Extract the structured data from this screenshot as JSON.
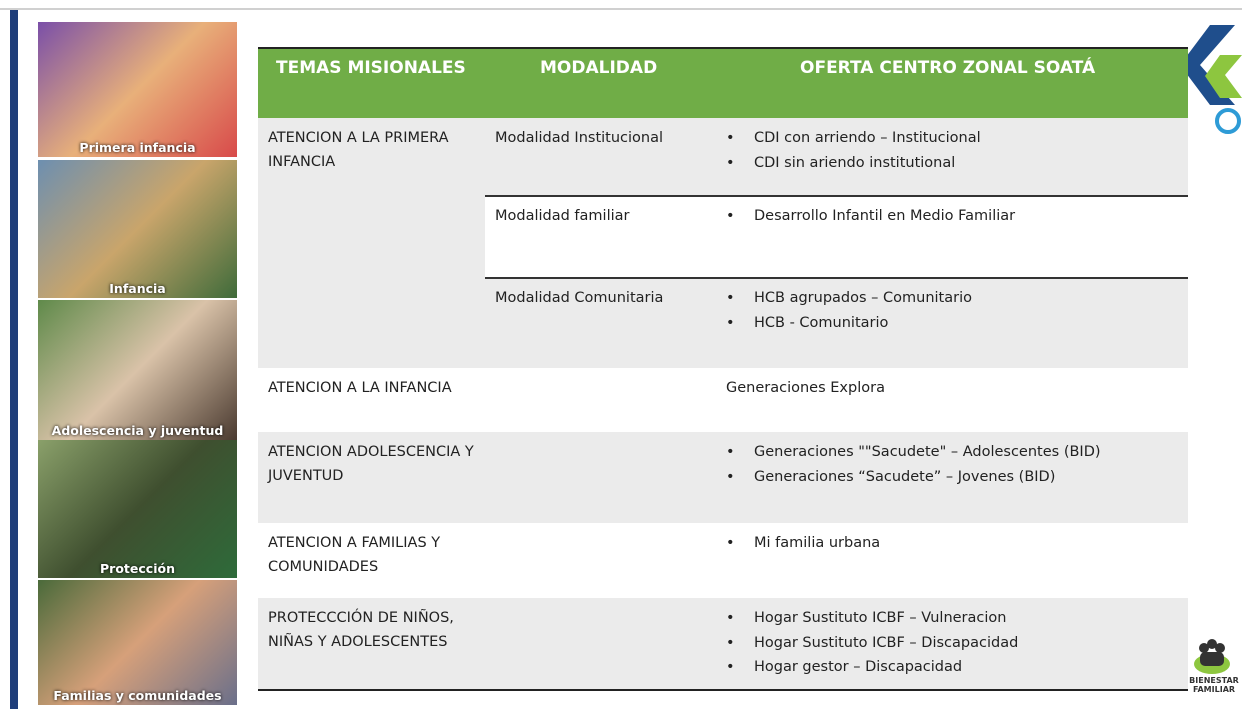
{
  "photos": [
    {
      "caption": "Primera infancia"
    },
    {
      "caption": "Infancia"
    },
    {
      "caption": "Adolescencia y juventud"
    },
    {
      "caption": "Protección"
    },
    {
      "caption": "Familias y comunidades"
    }
  ],
  "table": {
    "header": [
      "TEMAS MISIONALES",
      "MODALIDAD",
      "OFERTA CENTRO ZONAL SOATÁ"
    ],
    "rows": [
      {
        "tema": "ATENCION A LA PRIMERA INFANCIA",
        "items": [
          {
            "modalidad": "Modalidad Institucional",
            "oferta": [
              "CDI con arriendo – Institucional",
              "CDI sin ariendo institutional"
            ]
          },
          {
            "modalidad": "Modalidad familiar",
            "oferta": [
              "Desarrollo Infantil en Medio Familiar"
            ]
          },
          {
            "modalidad": "Modalidad Comunitaria",
            "oferta": [
              "HCB agrupados – Comunitario",
              "HCB - Comunitario"
            ]
          }
        ]
      },
      {
        "tema": "ATENCION A LA INFANCIA",
        "items": [
          {
            "oferta": "Generaciones Explora"
          }
        ]
      },
      {
        "tema": "ATENCION ADOLESCENCIA Y JUVENTUD",
        "items": [
          {
            "oferta": [
              "Generaciones \"\"Sacudete\" – Adolescentes (BID)",
              "Generaciones “Sacudete” – Jovenes (BID)"
            ]
          }
        ]
      },
      {
        "tema": "ATENCION A FAMILIAS Y COMUNIDADES",
        "items": [
          {
            "oferta": [
              "Mi familia urbana"
            ]
          }
        ]
      },
      {
        "tema": "PROTECCCIÓN DE NIÑOS, NIÑAS Y ADOLESCENTES",
        "items": [
          {
            "oferta": [
              "Hogar Sustituto ICBF – Vulneracion",
              "Hogar Sustituto ICBF – Discapacidad",
              "Hogar gestor – Discapacidad"
            ]
          }
        ]
      }
    ]
  },
  "logo": {
    "text": [
      "BIENESTAR",
      "FAMILIAR"
    ]
  }
}
